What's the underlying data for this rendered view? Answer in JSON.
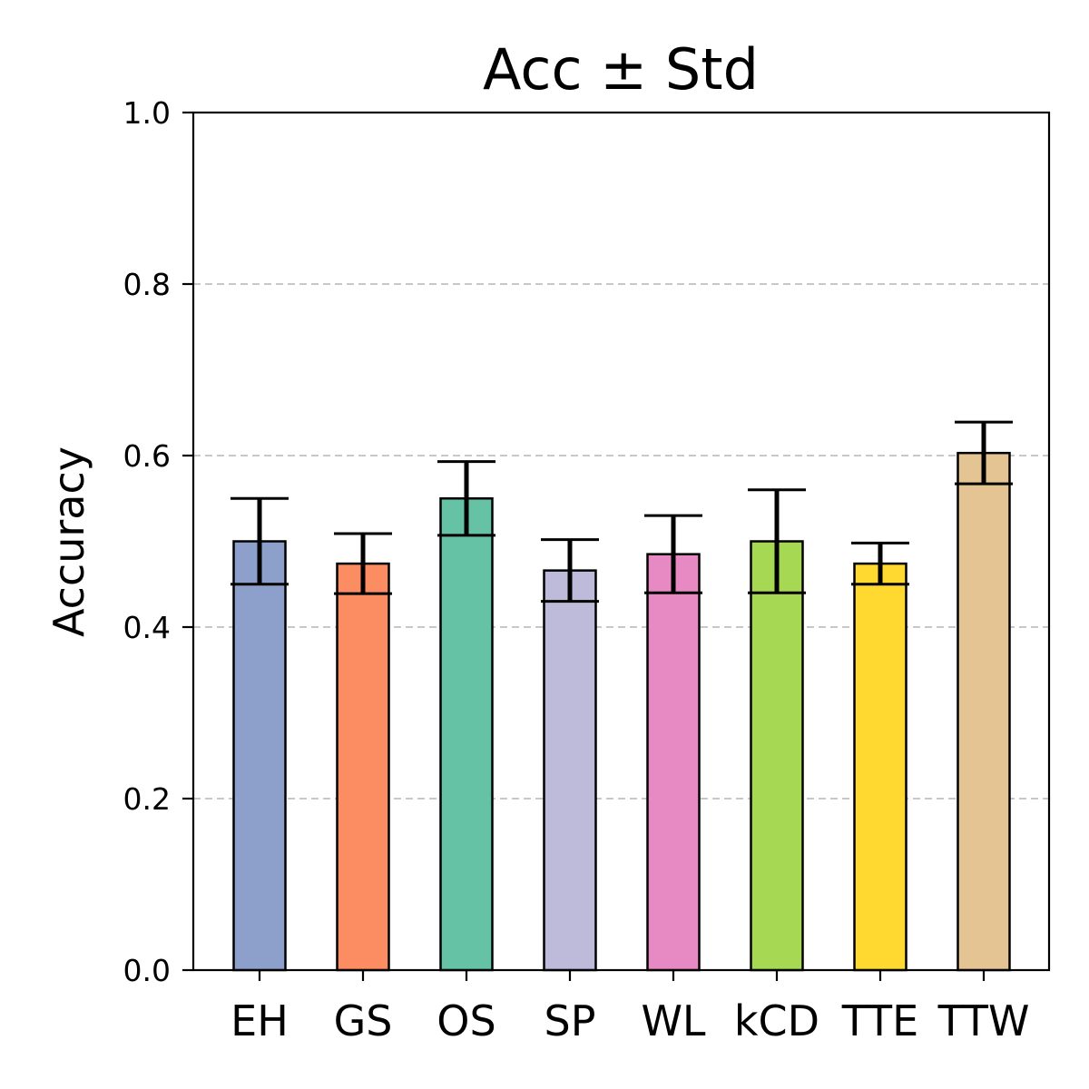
{
  "chart_data": {
    "type": "bar",
    "title": "Acc ± Std",
    "xlabel": "",
    "ylabel": "Accuracy",
    "ylim": [
      0,
      1.0
    ],
    "yticks": [
      "0.0",
      "0.2",
      "0.4",
      "0.6",
      "0.8",
      "1.0"
    ],
    "grid": {
      "axis": "y",
      "style": "dashed",
      "color": "#c8c8c8"
    },
    "categories": [
      "EH",
      "GS",
      "OS",
      "SP",
      "WL",
      "kCD",
      "TTE",
      "TTW"
    ],
    "values": [
      0.5,
      0.474,
      0.55,
      0.466,
      0.485,
      0.5,
      0.474,
      0.603
    ],
    "errors": [
      0.05,
      0.035,
      0.043,
      0.036,
      0.045,
      0.06,
      0.024,
      0.036
    ],
    "colors": [
      "#8da0cb",
      "#fc8d62",
      "#66c2a5",
      "#bebbda",
      "#e78ac3",
      "#a6d854",
      "#ffd92f",
      "#e5c494"
    ]
  }
}
